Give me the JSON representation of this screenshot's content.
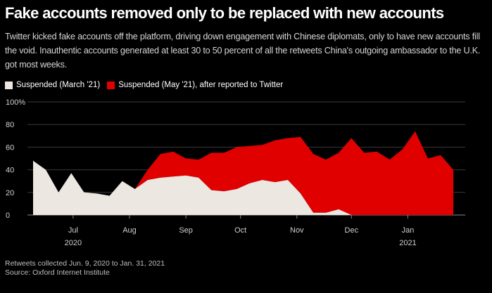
{
  "title": "Fake accounts removed only to be replaced with new accounts",
  "subtitle": "Twitter kicked fake accounts off the platform, driving down engagement with Chinese diplomats, only to have new accounts fill the void. Inauthentic accounts generated at least 30 to 50 percent of all the retweets China's outgoing ambassador to the U.K. got most weeks.",
  "notes": {
    "line1": "Retweets collected Jun. 9, 2020 to Jan. 31, 2021",
    "line2": "Source: Oxford Internet Institute"
  },
  "colors": {
    "background": "#000000",
    "suspended_march": "#ece7e1",
    "suspended_may": "#e00000",
    "grid": "#3a3a3a"
  },
  "chart_data": {
    "type": "area",
    "stacked": true,
    "x_type": "date",
    "x": [
      "2020-06-09",
      "2020-06-16",
      "2020-06-23",
      "2020-06-30",
      "2020-07-07",
      "2020-07-14",
      "2020-07-21",
      "2020-07-28",
      "2020-08-04",
      "2020-08-11",
      "2020-08-18",
      "2020-08-25",
      "2020-09-01",
      "2020-09-08",
      "2020-09-15",
      "2020-09-22",
      "2020-09-29",
      "2020-10-06",
      "2020-10-13",
      "2020-10-20",
      "2020-10-27",
      "2020-11-03",
      "2020-11-10",
      "2020-11-17",
      "2020-11-24",
      "2020-12-01",
      "2020-12-08",
      "2020-12-15",
      "2020-12-22",
      "2020-12-29",
      "2021-01-05",
      "2021-01-12",
      "2021-01-19",
      "2021-01-26"
    ],
    "series": [
      {
        "name": "Suspended (March '21)",
        "color": "#ece7e1",
        "values": [
          48,
          40,
          20,
          37,
          20,
          19,
          17,
          30,
          23,
          31,
          33,
          34,
          35,
          33,
          22,
          21,
          23,
          28,
          31,
          29,
          31,
          19,
          2,
          2,
          5,
          0,
          0,
          0,
          0,
          0,
          0,
          0,
          0,
          0
        ]
      },
      {
        "name": "Suspended (May '21), after reported to Twitter",
        "color": "#e00000",
        "values": [
          0,
          0,
          0,
          0,
          0,
          0,
          0,
          0,
          0,
          9,
          21,
          22,
          15,
          16,
          33,
          34,
          37,
          33,
          31,
          37,
          37,
          50,
          52,
          47,
          50,
          68,
          55,
          56,
          49,
          58,
          74,
          50,
          53,
          40
        ]
      }
    ],
    "ylim": [
      0,
      100
    ],
    "yticks": [
      0,
      20,
      40,
      60,
      80,
      100
    ],
    "ytick_labels": [
      "0",
      "20",
      "40",
      "60",
      "80",
      "100%"
    ],
    "xlim": [
      "2020-06-09",
      "2021-01-31"
    ],
    "xticks": [
      {
        "date": "2020-07-01",
        "label": "Jul",
        "year": "2020"
      },
      {
        "date": "2020-08-01",
        "label": "Aug",
        "year": ""
      },
      {
        "date": "2020-09-01",
        "label": "Sep",
        "year": ""
      },
      {
        "date": "2020-10-01",
        "label": "Oct",
        "year": ""
      },
      {
        "date": "2020-11-01",
        "label": "Nov",
        "year": ""
      },
      {
        "date": "2020-12-01",
        "label": "Dec",
        "year": ""
      },
      {
        "date": "2021-01-01",
        "label": "Jan",
        "year": "2021"
      }
    ],
    "grid": true,
    "legend": "top-left",
    "xlabel": "",
    "ylabel": ""
  }
}
